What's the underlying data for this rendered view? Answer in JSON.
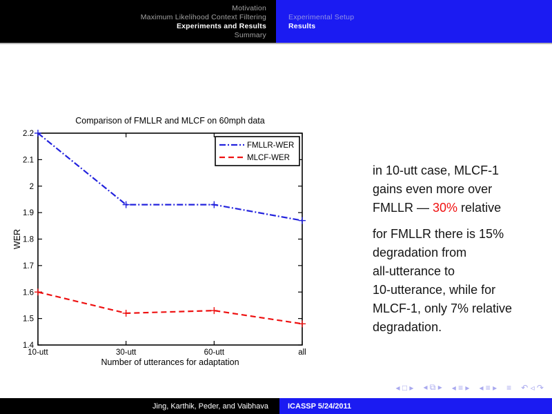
{
  "header": {
    "sections": [
      {
        "label": "Motivation",
        "active": false
      },
      {
        "label": "Maximum Likelihood Context Filtering",
        "active": false
      },
      {
        "label": "Experiments and Results",
        "active": true
      },
      {
        "label": "Summary",
        "active": false
      }
    ],
    "subsections": [
      {
        "label": "Experimental Setup",
        "active": false
      },
      {
        "label": "Results",
        "active": true
      }
    ]
  },
  "chart_data": {
    "type": "line",
    "title": "Comparison of FMLLR and MLCF on 60mph data",
    "xlabel": "Number of utterances for adaptation",
    "ylabel": "WER",
    "categories": [
      "10-utt",
      "30-utt",
      "60-utt",
      "all"
    ],
    "series": [
      {
        "name": "FMLLR-WER",
        "color": "#2222dd",
        "style": "dashdot",
        "marker": "plus",
        "values": [
          2.2,
          1.93,
          1.93,
          1.87
        ]
      },
      {
        "name": "MLCF-WER",
        "color": "#ee1111",
        "style": "dashed",
        "marker": "plus",
        "values": [
          1.6,
          1.52,
          1.53,
          1.48
        ]
      }
    ],
    "ylim": [
      1.4,
      2.2
    ],
    "yticks": [
      1.4,
      1.5,
      1.6,
      1.7,
      1.8,
      1.9,
      2.0,
      2.1,
      2.2
    ],
    "legend_position": "top-right",
    "grid": false
  },
  "notes": {
    "note1_lines": [
      "in 10-utt case, MLCF-1",
      "gains even more over"
    ],
    "note1_line3_prefix": "FMLLR — ",
    "note1_line3_highlight": "30%",
    "note1_line3_suffix": " relative",
    "note2_lines": [
      "for FMLLR there is 15%",
      "degradation from",
      "all-utterance to",
      "10-utterance, while for",
      "MLCF-1, only 7% relative",
      "degradation."
    ]
  },
  "navsymbols": [
    "◂ □ ▸",
    "◂ ⧉ ▸",
    "◂ ≡ ▸",
    "◂ ≡ ▸",
    "≡",
    "↶ ◃ ↷"
  ],
  "footer": {
    "authors": "Jing, Karthik, Peder, and Vaibhava",
    "venue": "ICASSP 5/24/2011"
  },
  "colors": {
    "accent_blue": "#1b1bf2",
    "header_dim_on_black": "#a2a2a2",
    "header_dim_on_blue": "#9393e6",
    "highlight_red": "#f01010",
    "nav_symbols": "#a9a9ef",
    "chart_blue": "#2222dd",
    "chart_red": "#ee1111"
  }
}
